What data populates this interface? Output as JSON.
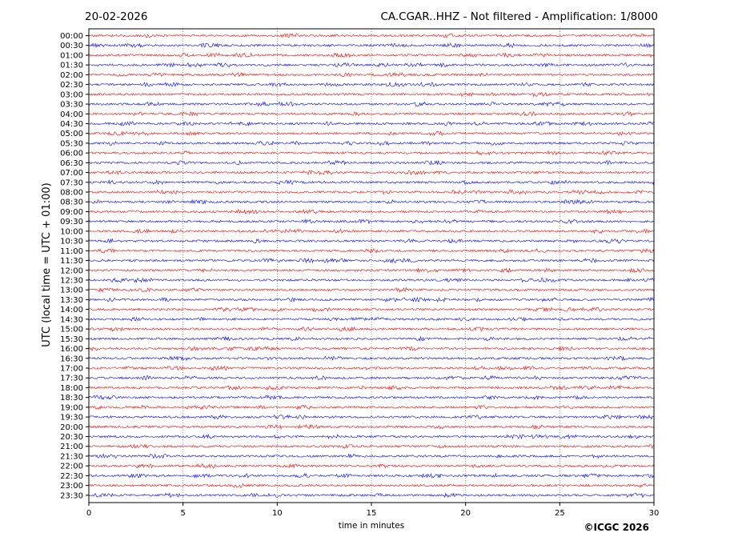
{
  "header": {
    "date": "20-02-2026",
    "station_title": "CA.CGAR..HHZ - Not filtered - Amplification: 1/8000"
  },
  "footer": {
    "copyright": "©ICGC 2026"
  },
  "chart_data": {
    "type": "line",
    "subtype": "helicorder",
    "xlabel": "time in minutes",
    "ylabel": "UTC (local time = UTC + 01:00)",
    "xlim": [
      0,
      30
    ],
    "x_ticks": [
      "0",
      "5",
      "10",
      "15",
      "20",
      "25",
      "30"
    ],
    "grid": "vertical dotted at 5-minute intervals",
    "trace_colors": [
      "#ff0000",
      "#0000ff"
    ],
    "row_labels": [
      "00:00",
      "00:30",
      "01:00",
      "01:30",
      "02:00",
      "02:30",
      "03:00",
      "03:30",
      "04:00",
      "04:30",
      "05:00",
      "05:30",
      "06:00",
      "06:30",
      "07:00",
      "07:30",
      "08:00",
      "08:30",
      "09:00",
      "09:30",
      "10:00",
      "10:30",
      "11:00",
      "11:30",
      "12:00",
      "12:30",
      "13:00",
      "13:30",
      "14:00",
      "14:30",
      "15:00",
      "15:30",
      "16:00",
      "16:30",
      "17:00",
      "17:30",
      "18:00",
      "18:30",
      "19:00",
      "19:30",
      "20:00",
      "20:30",
      "21:00",
      "21:30",
      "22:00",
      "22:30",
      "23:00",
      "23:30"
    ]
  }
}
